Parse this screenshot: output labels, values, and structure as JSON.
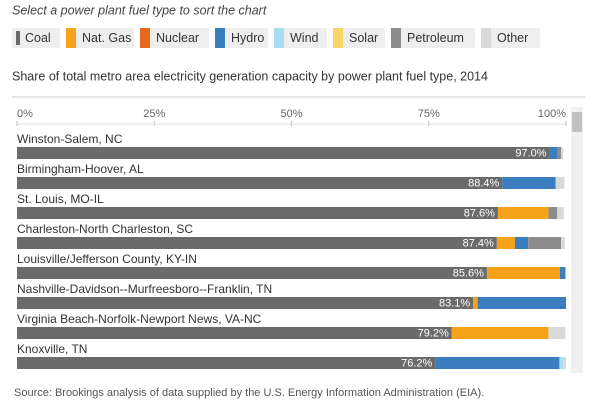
{
  "chart_data": {
    "type": "bar",
    "orientation": "horizontal",
    "stacked": true,
    "prompt": "Select a power plant fuel type to sort the chart",
    "title": "Share of total metro area electricity generation capacity by power plant fuel type, 2014",
    "source": "Source: Brookings analysis of data supplied by the U.S. Energy Information Administration (EIA).",
    "categories": [
      "Winston-Salem, NC",
      "Birmingham-Hoover, AL",
      "St. Louis, MO-IL",
      "Charleston-North Charleston, SC",
      "Louisville/Jefferson County, KY-IN",
      "Nashville-Davidson--Murfreesboro--Franklin, TN",
      "Virginia Beach-Norfolk-Newport News, VA-NC",
      "Knoxville, TN"
    ],
    "series": [
      {
        "name": "Coal",
        "color": "#6b6b6b",
        "values": [
          97.0,
          88.4,
          87.6,
          87.4,
          85.6,
          83.1,
          79.2,
          76.2
        ],
        "value_labels": [
          "97.0%",
          "88.4%",
          "87.6%",
          "87.4%",
          "85.6%",
          "83.1%",
          "79.2%",
          "76.2%"
        ]
      },
      {
        "name": "Nat. Gas",
        "color": "#f7a21b",
        "values": [
          0,
          0,
          9.2,
          3.3,
          13.3,
          0.8,
          17.6,
          0
        ]
      },
      {
        "name": "Nuclear",
        "color": "#e8691c",
        "values": [
          0,
          0,
          0,
          0,
          0,
          0,
          0,
          0
        ]
      },
      {
        "name": "Hydro",
        "color": "#3a7ebf",
        "values": [
          1.5,
          9.7,
          0,
          2.4,
          1.0,
          16.1,
          0,
          22.6
        ]
      },
      {
        "name": "Wind",
        "color": "#a8dcf0",
        "values": [
          0,
          0,
          0,
          0,
          0,
          0,
          0,
          0.7
        ]
      },
      {
        "name": "Solar",
        "color": "#f8d56b",
        "values": [
          0,
          0,
          0,
          0,
          0,
          0,
          0,
          0
        ]
      },
      {
        "name": "Petroleum",
        "color": "#8c8c8c",
        "values": [
          0.6,
          0,
          1.6,
          6.0,
          0,
          0,
          0,
          0
        ]
      },
      {
        "name": "Other",
        "color": "#d9d9d9",
        "values": [
          0.4,
          1.6,
          1.2,
          0.7,
          0,
          0,
          3.1,
          0.5
        ]
      }
    ],
    "xlim": [
      0,
      100
    ],
    "xticks": [
      {
        "value": 0,
        "label": "0%"
      },
      {
        "value": 25,
        "label": "25%"
      },
      {
        "value": 50,
        "label": "50%"
      },
      {
        "value": 75,
        "label": "75%"
      },
      {
        "value": 100,
        "label": "100%"
      }
    ]
  }
}
